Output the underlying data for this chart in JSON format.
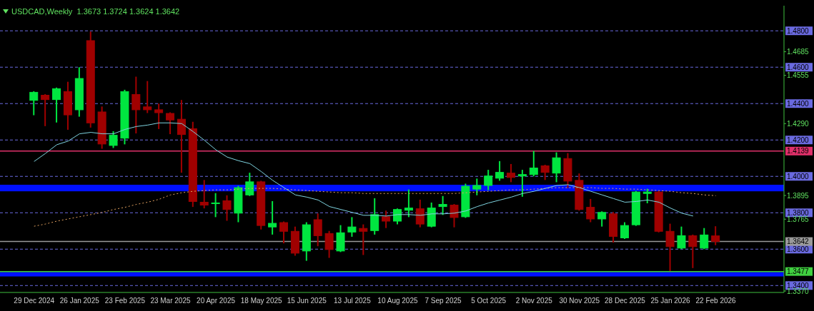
{
  "chart_data": {
    "type": "candlestick",
    "title": "USDCAD,Weekly  1.3673 1.3724 1.3624 1.3642",
    "categories": [
      "29 Dec 2024",
      null,
      null,
      null,
      "26 Jan 2025",
      null,
      null,
      null,
      "23 Feb 2025",
      null,
      null,
      null,
      "23 Mar 2025",
      null,
      null,
      null,
      "20 Apr 2025",
      null,
      null,
      null,
      "18 May 2025",
      null,
      null,
      null,
      "15 Jun 2025",
      null,
      null,
      null,
      "13 Jul 2025",
      null,
      null,
      null,
      "10 Aug 2025",
      null,
      null,
      null,
      "7 Sep 2025",
      null,
      null,
      null,
      "5 Oct 2025",
      null,
      null,
      null,
      "2 Nov 2025",
      null,
      null,
      null,
      "30 Nov 2025",
      null,
      null,
      null,
      "28 Dec 2025",
      null,
      null,
      null,
      "25 Jan 2026",
      null,
      null,
      null,
      "22 Feb 2026"
    ],
    "ohlc": [
      [
        1.4418,
        1.4466,
        1.4338,
        1.4462
      ],
      [
        1.4446,
        1.445,
        1.4278,
        1.4422
      ],
      [
        1.4422,
        1.4486,
        1.4298,
        1.4482
      ],
      [
        1.4466,
        1.4518,
        1.4258,
        1.4338
      ],
      [
        1.4366,
        1.4598,
        1.433,
        1.4538
      ],
      [
        1.4746,
        1.4794,
        1.427,
        1.4294
      ],
      [
        1.4354,
        1.4382,
        1.4154,
        1.4178
      ],
      [
        1.417,
        1.4246,
        1.4158,
        1.4226
      ],
      [
        1.421,
        1.4474,
        1.4178,
        1.4466
      ],
      [
        1.445,
        1.4546,
        1.4238,
        1.4366
      ],
      [
        1.4382,
        1.4522,
        1.435,
        1.4366
      ],
      [
        1.4366,
        1.4398,
        1.4262,
        1.435
      ],
      [
        1.4346,
        1.435,
        1.4234,
        1.431
      ],
      [
        1.4314,
        1.4418,
        1.4022,
        1.423
      ],
      [
        1.4262,
        1.4298,
        1.3834,
        1.3862
      ],
      [
        1.3858,
        1.3978,
        1.3826,
        1.3842
      ],
      [
        1.385,
        1.3906,
        1.3778,
        1.3854
      ],
      [
        1.3866,
        1.3894,
        1.3758,
        1.3818
      ],
      [
        1.3798,
        1.3946,
        1.375,
        1.3938
      ],
      [
        1.3898,
        1.4018,
        1.3894,
        1.397
      ],
      [
        1.397,
        1.3974,
        1.371,
        1.373
      ],
      [
        1.3722,
        1.3862,
        1.3682,
        1.3742
      ],
      [
        1.3746,
        1.375,
        1.3634,
        1.3698
      ],
      [
        1.3698,
        1.3722,
        1.3566,
        1.3578
      ],
      [
        1.359,
        1.3746,
        1.3538,
        1.3734
      ],
      [
        1.3762,
        1.3794,
        1.3618,
        1.3674
      ],
      [
        1.3686,
        1.3698,
        1.3554,
        1.3598
      ],
      [
        1.359,
        1.373,
        1.3586,
        1.369
      ],
      [
        1.3694,
        1.3774,
        1.367,
        1.3722
      ],
      [
        1.3714,
        1.3734,
        1.357,
        1.3698
      ],
      [
        1.3702,
        1.3878,
        1.3682,
        1.379
      ],
      [
        1.3778,
        1.381,
        1.3718,
        1.3754
      ],
      [
        1.3754,
        1.3822,
        1.3738,
        1.3818
      ],
      [
        1.3814,
        1.3926,
        1.3778,
        1.3826
      ],
      [
        1.3822,
        1.387,
        1.3722,
        1.3738
      ],
      [
        1.3726,
        1.3854,
        1.3722,
        1.3826
      ],
      [
        1.3834,
        1.389,
        1.379,
        1.3846
      ],
      [
        1.3842,
        1.3846,
        1.3722,
        1.3774
      ],
      [
        1.3778,
        1.3958,
        1.3774,
        1.3946
      ],
      [
        1.393,
        1.3986,
        1.3898,
        1.395
      ],
      [
        1.395,
        1.4034,
        1.3926,
        1.4002
      ],
      [
        1.399,
        1.4082,
        1.3978,
        1.4022
      ],
      [
        1.4018,
        1.4066,
        1.397,
        1.3994
      ],
      [
        1.4002,
        1.4034,
        1.389,
        1.401
      ],
      [
        1.401,
        1.4138,
        1.4002,
        1.4046
      ],
      [
        1.4058,
        1.4062,
        1.3982,
        1.4022
      ],
      [
        1.4018,
        1.413,
        1.397,
        1.4102
      ],
      [
        1.4098,
        1.4126,
        1.3938,
        1.3974
      ],
      [
        1.3978,
        1.4014,
        1.3814,
        1.3818
      ],
      [
        1.383,
        1.3874,
        1.375,
        1.3766
      ],
      [
        1.3766,
        1.3806,
        1.3726,
        1.3802
      ],
      [
        1.3794,
        1.3802,
        1.3638,
        1.367
      ],
      [
        1.3662,
        1.3746,
        1.3658,
        1.373
      ],
      [
        1.3734,
        1.3918,
        1.373,
        1.3914
      ],
      [
        1.3906,
        1.393,
        1.3854,
        1.3914
      ],
      [
        1.3914,
        1.3918,
        1.3694,
        1.3698
      ],
      [
        1.3698,
        1.3738,
        1.3482,
        1.3614
      ],
      [
        1.3606,
        1.3722,
        1.3602,
        1.3674
      ],
      [
        1.3674,
        1.3678,
        1.3498,
        1.3614
      ],
      [
        1.3606,
        1.3714,
        1.3602,
        1.3678
      ],
      [
        1.3673,
        1.3724,
        1.3624,
        1.3642
      ]
    ],
    "colors": [
      "#00e640",
      "#a00000",
      "#00e640",
      "#a00000",
      "#00e640",
      "#a00000",
      "#a00000",
      "#00e640",
      "#00e640",
      "#a00000",
      "#a00000",
      "#a00000",
      "#a00000",
      "#a00000",
      "#a00000",
      "#a00000",
      "#00e640",
      "#a00000",
      "#00e640",
      "#00e640",
      "#a00000",
      "#00e640",
      "#a00000",
      "#a00000",
      "#00e640",
      "#a00000",
      "#a00000",
      "#00e640",
      "#00e640",
      "#a00000",
      "#00e640",
      "#a00000",
      "#00e640",
      "#00e640",
      "#a00000",
      "#00e640",
      "#00e640",
      "#a00000",
      "#00e640",
      "#00e640",
      "#00e640",
      "#00e640",
      "#a00000",
      "#00e640",
      "#00e640",
      "#a00000",
      "#00e640",
      "#a00000",
      "#a00000",
      "#a00000",
      "#00e640",
      "#a00000",
      "#00e640",
      "#00e640",
      "#00e640",
      "#a00000",
      "#a00000",
      "#00e640",
      "#a00000",
      "#00e640",
      "#a00000"
    ],
    "series": [
      {
        "type": "line",
        "color": "#7fd4e0",
        "line_style": "solid",
        "values": [
          1.4082,
          1.4126,
          1.4174,
          1.4194,
          1.4234,
          1.4242,
          1.4234,
          1.4234,
          1.4258,
          1.4274,
          1.4282,
          1.4294,
          1.4294,
          1.429,
          1.4246,
          1.4198,
          1.4146,
          1.4106,
          1.4086,
          1.407,
          1.4026,
          1.3978,
          1.3938,
          1.3898,
          1.3886,
          1.387,
          1.3834,
          1.3818,
          1.3802,
          1.3786,
          1.3786,
          1.3782,
          1.379,
          1.379,
          1.3786,
          1.3794,
          1.3794,
          1.3798,
          1.381,
          1.3834,
          1.3854,
          1.387,
          1.3886,
          1.3906,
          1.3918,
          1.3934,
          1.395,
          1.3954,
          1.3938,
          1.3918,
          1.3898,
          1.3878,
          1.3858,
          1.3862,
          1.387,
          1.3858,
          1.3826,
          1.3798,
          1.3782,
          null,
          null
        ]
      },
      {
        "type": "line",
        "color": "#e0a060",
        "line_style": "dotted",
        "values": [
          1.3726,
          1.3738,
          1.3754,
          1.3766,
          1.3778,
          1.379,
          1.3802,
          1.3818,
          1.383,
          1.3846,
          1.3858,
          1.3874,
          1.3898,
          1.391,
          1.3918,
          1.3922,
          1.3926,
          1.3926,
          1.393,
          1.3934,
          null,
          1.3934,
          1.393,
          1.3926,
          1.3922,
          1.3918,
          1.3914,
          1.391,
          1.391,
          1.3906,
          1.3906,
          1.3906,
          1.3906,
          1.3906,
          1.3906,
          1.3906,
          1.3906,
          1.3906,
          1.391,
          1.3914,
          1.3918,
          1.3922,
          1.3926,
          1.3926,
          1.393,
          1.3934,
          1.3938,
          null,
          null,
          1.3938,
          1.3934,
          1.3934,
          1.393,
          1.393,
          1.3926,
          1.3922,
          1.3918,
          1.391,
          1.3906,
          1.3898,
          1.3894
        ]
      }
    ],
    "ylim": [
      1.3362,
      1.4938
    ],
    "yticks": [
      {
        "value": 1.337,
        "label": "1.3370"
      },
      1.4685,
      1.4555,
      {
        "value": 1.429,
        "label": "1.4290"
      },
      1.3895,
      1.3765
    ],
    "ref_lines": [
      {
        "axis": "y",
        "value": 1.48,
        "label": "1.4800",
        "color": "#6a6ae0",
        "line_style": "dashed"
      },
      {
        "axis": "y",
        "value": 1.46,
        "label": "1.4600",
        "color": "#6a6ae0",
        "line_style": "dashed"
      },
      {
        "axis": "y",
        "value": 1.44,
        "label": "1.4400",
        "color": "#6a6ae0",
        "line_style": "dashed"
      },
      {
        "axis": "y",
        "value": 1.42,
        "label": "1.4200",
        "color": "#6a6ae0",
        "line_style": "dashed"
      },
      {
        "axis": "y",
        "value": 1.4,
        "label": "1.4000",
        "color": "#6a6ae0",
        "line_style": "dashed"
      },
      {
        "axis": "y",
        "value": 1.38,
        "label": "1.3800",
        "color": "#6a6ae0",
        "line_style": "dashed"
      },
      {
        "axis": "y",
        "value": 1.36,
        "label": "1.3600",
        "color": "#6a6ae0",
        "line_style": "dashed"
      },
      {
        "axis": "y",
        "value": 1.34,
        "label": "1.3400",
        "color": "#6a6ae0",
        "line_style": "dashed"
      },
      {
        "axis": "y",
        "value": 1.4139,
        "label": "1.4139",
        "color": "#e0306a",
        "line_style": "solid"
      },
      {
        "axis": "y",
        "value": 1.3477,
        "label": "1.3477",
        "color": "#40d040",
        "line_style": "solid"
      },
      {
        "axis": "y",
        "value": 1.3642,
        "label": "1.3642",
        "color": "#9a9a9a",
        "line_style": "solid"
      }
    ],
    "bands": [
      {
        "axis": "y",
        "from": 1.3918,
        "to": 1.3954,
        "color": "#0010ff"
      },
      {
        "axis": "y",
        "from": 1.345,
        "to": 1.3474,
        "color": "#0010ff"
      }
    ]
  }
}
